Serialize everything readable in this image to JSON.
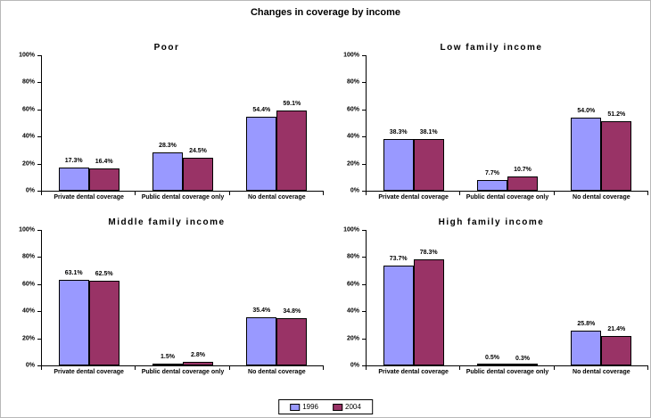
{
  "title": "Changes in coverage by income",
  "colors": {
    "series_1996": "#9999FF",
    "series_2004": "#993366",
    "axis": "#000000",
    "background": "#FFFFFF"
  },
  "legend": {
    "items": [
      {
        "label": "1996",
        "color": "#9999FF"
      },
      {
        "label": "2004",
        "color": "#993366"
      }
    ]
  },
  "chart_data": [
    {
      "type": "bar",
      "title": "Poor",
      "categories": [
        "Private dental coverage",
        "Public dental coverage only",
        "No dental coverage"
      ],
      "series": [
        {
          "name": "1996",
          "color": "#9999FF",
          "values": [
            17.3,
            28.3,
            54.4
          ],
          "labels": [
            "17.3%",
            "28.3%",
            "54.4%"
          ]
        },
        {
          "name": "2004",
          "color": "#993366",
          "values": [
            16.4,
            24.5,
            59.1
          ],
          "labels": [
            "16.4%",
            "24.5%",
            "59.1%"
          ]
        }
      ],
      "xlabel": "",
      "ylabel": "",
      "ylim": [
        0,
        100
      ],
      "y_ticks": [
        "0%",
        "20%",
        "40%",
        "60%",
        "80%",
        "100%"
      ],
      "grid": false,
      "legend_position": "bottom-shared"
    },
    {
      "type": "bar",
      "title": "Low family income",
      "categories": [
        "Private dental coverage",
        "Public dental coverage only",
        "No dental coverage"
      ],
      "series": [
        {
          "name": "1996",
          "color": "#9999FF",
          "values": [
            38.3,
            7.7,
            54.0
          ],
          "labels": [
            "38.3%",
            "7.7%",
            "54.0%"
          ]
        },
        {
          "name": "2004",
          "color": "#993366",
          "values": [
            38.1,
            10.7,
            51.2
          ],
          "labels": [
            "38.1%",
            "10.7%",
            "51.2%"
          ]
        }
      ],
      "xlabel": "",
      "ylabel": "",
      "ylim": [
        0,
        100
      ],
      "y_ticks": [
        "0%",
        "20%",
        "40%",
        "60%",
        "80%",
        "100%"
      ],
      "grid": false,
      "legend_position": "bottom-shared"
    },
    {
      "type": "bar",
      "title": "Middle family income",
      "categories": [
        "Private dental coverage",
        "Public dental coverage only",
        "No dental coverage"
      ],
      "series": [
        {
          "name": "1996",
          "color": "#9999FF",
          "values": [
            63.1,
            1.5,
            35.4
          ],
          "labels": [
            "63.1%",
            "1.5%",
            "35.4%"
          ]
        },
        {
          "name": "2004",
          "color": "#993366",
          "values": [
            62.5,
            2.8,
            34.8
          ],
          "labels": [
            "62.5%",
            "2.8%",
            "34.8%"
          ]
        }
      ],
      "xlabel": "",
      "ylabel": "",
      "ylim": [
        0,
        100
      ],
      "y_ticks": [
        "0%",
        "20%",
        "40%",
        "60%",
        "80%",
        "100%"
      ],
      "grid": false,
      "legend_position": "bottom-shared"
    },
    {
      "type": "bar",
      "title": "High family income",
      "categories": [
        "Private dental coverage",
        "Public dental coverage only",
        "No dental coverage"
      ],
      "series": [
        {
          "name": "1996",
          "color": "#9999FF",
          "values": [
            73.7,
            0.5,
            25.8
          ],
          "labels": [
            "73.7%",
            "0.5%",
            "25.8%"
          ]
        },
        {
          "name": "2004",
          "color": "#993366",
          "values": [
            78.3,
            0.3,
            21.4
          ],
          "labels": [
            "78.3%",
            "0.3%",
            "21.4%"
          ]
        }
      ],
      "xlabel": "",
      "ylabel": "",
      "ylim": [
        0,
        100
      ],
      "y_ticks": [
        "0%",
        "20%",
        "40%",
        "60%",
        "80%",
        "100%"
      ],
      "grid": false,
      "legend_position": "bottom-shared"
    }
  ]
}
